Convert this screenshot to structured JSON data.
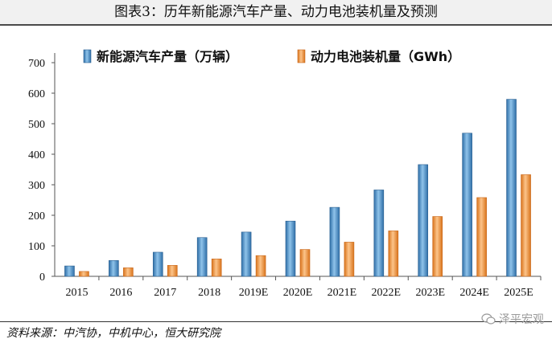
{
  "header": {
    "title": "图表3：历年新能源汽车产量、动力电池装机量及预测"
  },
  "footer": {
    "source": "资料来源：中汽协，中机中心，恒大研究院",
    "watermark": "泽平宏观"
  },
  "colors": {
    "series1": "#4a8fc9",
    "series2": "#f0983a"
  },
  "chart_data": {
    "type": "bar",
    "categories": [
      "2015",
      "2016",
      "2017",
      "2018",
      "2019E",
      "2020E",
      "2021E",
      "2022E",
      "2023E",
      "2024E",
      "2025E"
    ],
    "series": [
      {
        "name": "新能源汽车产量（万辆）",
        "values": [
          34,
          52,
          79,
          127,
          145,
          181,
          226,
          283,
          366,
          469,
          580
        ]
      },
      {
        "name": "动力电池装机量（GWh）",
        "values": [
          16,
          28,
          36,
          57,
          68,
          88,
          112,
          149,
          196,
          258,
          333
        ]
      }
    ],
    "ylim": [
      0,
      700
    ],
    "yticks": [
      0,
      100,
      200,
      300,
      400,
      500,
      600,
      700
    ],
    "legend": "top",
    "grid": false
  }
}
